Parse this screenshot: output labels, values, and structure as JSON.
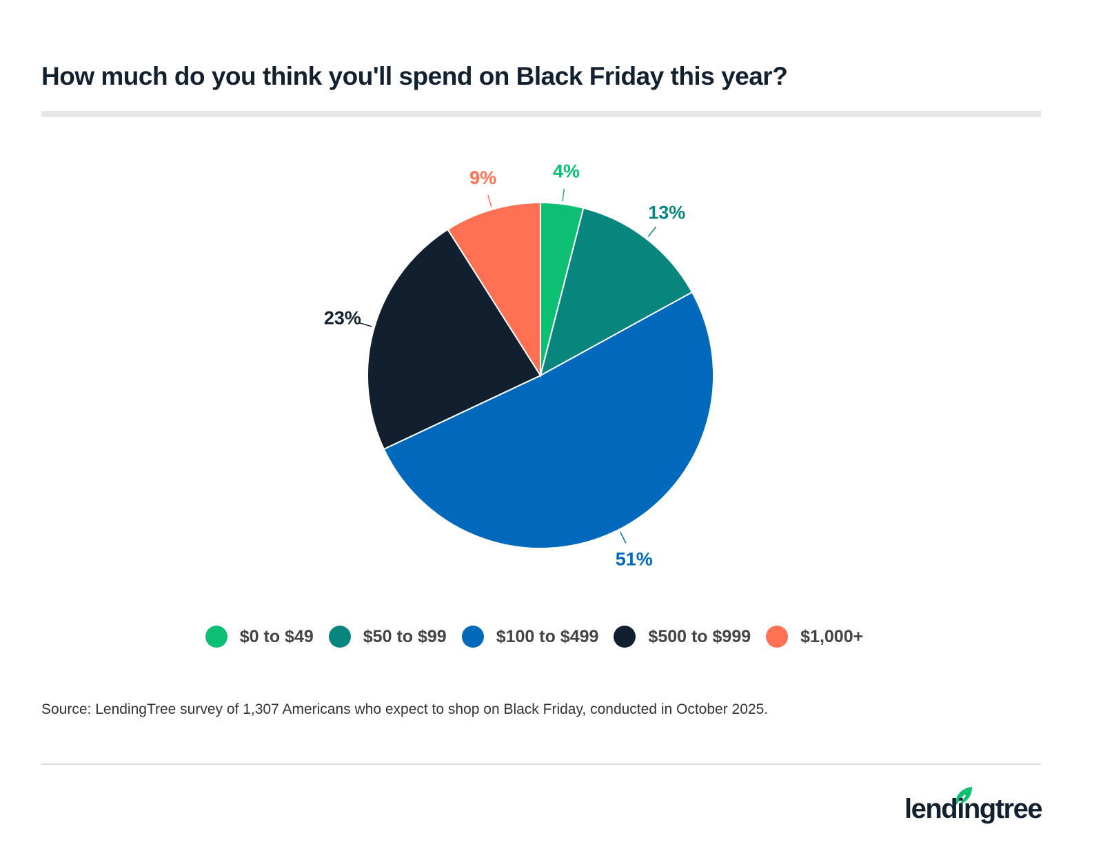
{
  "title": "How much do you think you'll spend on Black Friday this year?",
  "chart_data": {
    "type": "pie",
    "title": "How much do you think you'll spend on Black Friday this year?",
    "categories": [
      "$0 to $49",
      "$50 to $99",
      "$100 to $499",
      "$500 to $999",
      "$1,000+"
    ],
    "values": [
      4,
      13,
      51,
      23,
      9
    ],
    "labels": [
      "4%",
      "13%",
      "51%",
      "23%",
      "9%"
    ],
    "colors": [
      "#0dbf73",
      "#08857d",
      "#0069bb",
      "#121f2f",
      "#ff7152"
    ],
    "legend_placement": "bottom",
    "start_angle": "top, clockwise"
  },
  "source": "Source: LendingTree survey of 1,307 Americans who expect to shop on Black Friday, conducted in October 2025.",
  "logo": {
    "text": "lendingtree",
    "color": "#0dbf73"
  }
}
